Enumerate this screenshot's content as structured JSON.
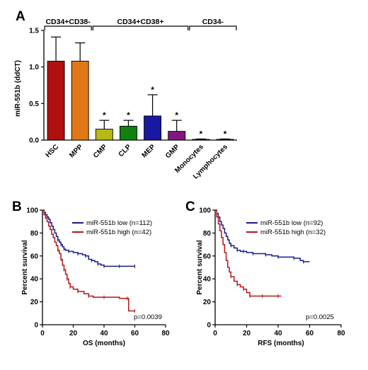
{
  "panel_a": {
    "letter": "A",
    "groups": [
      {
        "label": "CD34+CD38-",
        "from": 0,
        "to": 1
      },
      {
        "label": "CD34+CD38+",
        "from": 2,
        "to": 5
      },
      {
        "label": "CD34-",
        "from": 6,
        "to": 7
      }
    ]
  },
  "panel_b": {
    "letter": "B",
    "p_value": "p=0.0039",
    "legend": [
      "miR-551b low (n=112)",
      "miR-551b high (n=42)"
    ]
  },
  "panel_c": {
    "letter": "C",
    "p_value": "p=0.0025",
    "legend": [
      "miR-551b low (n=92)",
      "miR-551b high (n=32)"
    ]
  },
  "chart_data": [
    {
      "type": "bar",
      "ylabel": "miR-551b (ddCT)",
      "ylim": [
        0,
        1.5
      ],
      "yticks": [
        "0.0",
        "0.5",
        "1.0",
        "1.5"
      ],
      "categories": [
        "HSC",
        "MPP",
        "CMP",
        "CLP",
        "MEP",
        "GMP",
        "Monocytes",
        "Lymphocytes"
      ],
      "values": [
        1.08,
        1.08,
        0.15,
        0.19,
        0.33,
        0.12,
        0.01,
        0.01
      ],
      "errors": [
        0.33,
        0.25,
        0.12,
        0.08,
        0.29,
        0.15,
        0.005,
        0.005
      ],
      "significance": [
        "",
        "",
        "*",
        "*",
        "*",
        "*",
        "*",
        "*"
      ],
      "colors": [
        "#b01010",
        "#e07818",
        "#b8b818",
        "#108010",
        "#1818a0",
        "#801880",
        "#303030",
        "#303030"
      ]
    },
    {
      "type": "line",
      "subtype": "kaplan-meier",
      "xlabel": "OS (months)",
      "ylabel": "Percent survival",
      "xlim": [
        0,
        80
      ],
      "ylim": [
        0,
        100
      ],
      "xticks": [
        "0",
        "20",
        "40",
        "60",
        "80"
      ],
      "yticks": [
        "0",
        "20",
        "40",
        "60",
        "80",
        "100"
      ],
      "series": [
        {
          "name": "miR-551b low (n=112)",
          "color": "#1a1a8c",
          "points": [
            [
              0,
              100
            ],
            [
              1,
              98
            ],
            [
              2,
              96
            ],
            [
              3,
              94
            ],
            [
              4,
              92
            ],
            [
              5,
              89
            ],
            [
              6,
              86
            ],
            [
              7,
              83
            ],
            [
              8,
              80
            ],
            [
              9,
              77
            ],
            [
              10,
              74
            ],
            [
              11,
              72
            ],
            [
              12,
              70
            ],
            [
              13,
              68
            ],
            [
              14,
              66
            ],
            [
              15,
              65
            ],
            [
              17,
              64
            ],
            [
              20,
              63
            ],
            [
              23,
              62
            ],
            [
              26,
              61
            ],
            [
              28,
              60
            ],
            [
              30,
              57
            ],
            [
              32,
              56
            ],
            [
              34,
              55
            ],
            [
              36,
              53
            ],
            [
              38,
              52
            ],
            [
              40,
              51
            ],
            [
              45,
              51
            ],
            [
              50,
              51
            ],
            [
              55,
              51
            ],
            [
              60,
              51
            ]
          ]
        },
        {
          "name": "miR-551b high (n=42)",
          "color": "#b01818",
          "points": [
            [
              0,
              100
            ],
            [
              1,
              96
            ],
            [
              2,
              93
            ],
            [
              3,
              90
            ],
            [
              4,
              86
            ],
            [
              5,
              83
            ],
            [
              6,
              79
            ],
            [
              7,
              76
            ],
            [
              8,
              72
            ],
            [
              9,
              69
            ],
            [
              10,
              65
            ],
            [
              11,
              62
            ],
            [
              12,
              57
            ],
            [
              13,
              52
            ],
            [
              14,
              48
            ],
            [
              15,
              44
            ],
            [
              16,
              40
            ],
            [
              17,
              36
            ],
            [
              18,
              33
            ],
            [
              20,
              31
            ],
            [
              23,
              29
            ],
            [
              27,
              27
            ],
            [
              30,
              25
            ],
            [
              33,
              24
            ],
            [
              40,
              24
            ],
            [
              50,
              23
            ],
            [
              55,
              23
            ],
            [
              56,
              12
            ],
            [
              60,
              12
            ]
          ]
        }
      ]
    },
    {
      "type": "line",
      "subtype": "kaplan-meier",
      "xlabel": "RFS (months)",
      "ylabel": "Percent survival",
      "xlim": [
        0,
        80
      ],
      "ylim": [
        0,
        100
      ],
      "xticks": [
        "0",
        "20",
        "40",
        "60",
        "80"
      ],
      "yticks": [
        "0",
        "20",
        "40",
        "60",
        "80",
        "100"
      ],
      "series": [
        {
          "name": "miR-551b low (n=92)",
          "color": "#1a1a8c",
          "points": [
            [
              0,
              100
            ],
            [
              1,
              97
            ],
            [
              2,
              94
            ],
            [
              3,
              90
            ],
            [
              4,
              87
            ],
            [
              5,
              84
            ],
            [
              6,
              80
            ],
            [
              7,
              77
            ],
            [
              8,
              74
            ],
            [
              9,
              71
            ],
            [
              10,
              69
            ],
            [
              12,
              67
            ],
            [
              14,
              65
            ],
            [
              16,
              64
            ],
            [
              18,
              64
            ],
            [
              20,
              63
            ],
            [
              24,
              62
            ],
            [
              28,
              62
            ],
            [
              32,
              61
            ],
            [
              36,
              60
            ],
            [
              40,
              59
            ],
            [
              45,
              59
            ],
            [
              50,
              58
            ],
            [
              54,
              56
            ],
            [
              56,
              55
            ],
            [
              60,
              55
            ]
          ]
        },
        {
          "name": "miR-551b high (n=32)",
          "color": "#b01818",
          "points": [
            [
              0,
              100
            ],
            [
              1,
              94
            ],
            [
              2,
              88
            ],
            [
              3,
              82
            ],
            [
              4,
              76
            ],
            [
              5,
              70
            ],
            [
              6,
              63
            ],
            [
              7,
              56
            ],
            [
              8,
              50
            ],
            [
              9,
              46
            ],
            [
              10,
              42
            ],
            [
              12,
              38
            ],
            [
              14,
              35
            ],
            [
              16,
              33
            ],
            [
              18,
              31
            ],
            [
              20,
              28
            ],
            [
              22,
              25
            ],
            [
              25,
              25
            ],
            [
              30,
              25
            ],
            [
              35,
              25
            ],
            [
              40,
              25
            ],
            [
              42,
              25
            ]
          ]
        }
      ]
    }
  ]
}
